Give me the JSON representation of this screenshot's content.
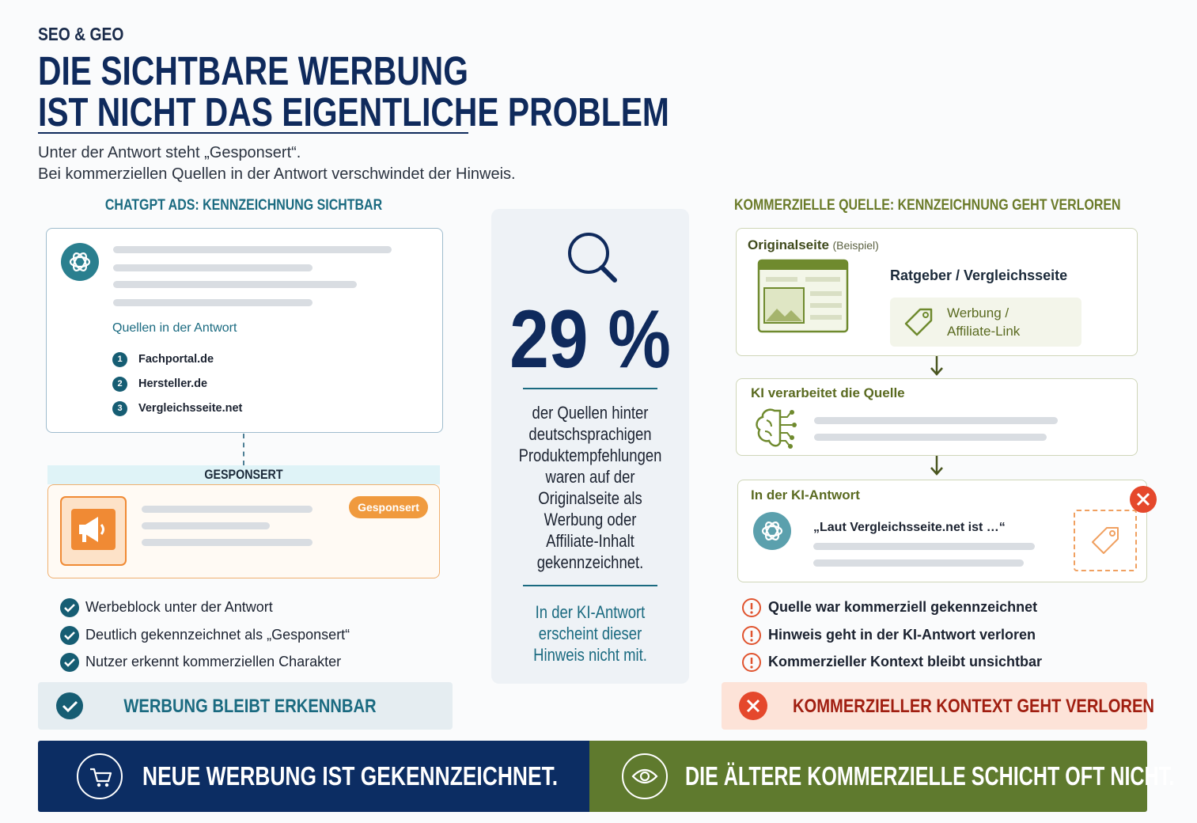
{
  "header": {
    "kicker": "SEO & GEO",
    "title_lines": [
      "DIE SICHTBARE WERBUNG",
      "IST NICHT DAS EIGENTLICHE PROBLEM"
    ],
    "subtitle_lines": [
      "Unter der Antwort steht „Gesponsert“.",
      "Bei kommerziellen Quellen in der Antwort verschwindet der Hinweis."
    ]
  },
  "left": {
    "heading": "CHATGPT ADS: KENNZEICHNUNG SICHTBAR",
    "sources_label": "Quellen in der Antwort",
    "sources": [
      {
        "number": "1",
        "name": "Fachportal.de"
      },
      {
        "number": "2",
        "name": "Hersteller.de"
      },
      {
        "number": "3",
        "name": "Vergleichsseite.net"
      }
    ],
    "sponsored_label": "GESPONSERT",
    "badge": "Gesponsert",
    "checks": [
      "Werbeblock unter der Antwort",
      "Deutlich gekennzeichnet als „Gesponsert“",
      "Nutzer erkennt kommerziellen Charakter"
    ],
    "result": "WERBUNG BLEIBT ERKENNBAR"
  },
  "center": {
    "stat": "29 %",
    "description_lines": [
      "der Quellen hinter",
      "deutschsprachigen",
      "Produktempfehlungen",
      "waren auf der",
      "Originalseite als",
      "Werbung oder",
      "Affiliate-Inhalt",
      "gekennzeichnet."
    ],
    "note_lines": [
      "In der KI-Antwort",
      "erscheint dieser",
      "Hinweis nicht mit."
    ]
  },
  "right": {
    "heading": "KOMMERZIELLE QUELLE: KENNZEICHNUNG GEHT VERLOREN",
    "original_title": "Originalseite",
    "original_hint": "(Beispiel)",
    "original_page": "Ratgeber / Vergleichsseite",
    "tag_lines": [
      "Werbung /",
      "Affiliate-Link"
    ],
    "processing_title": "KI verarbeitet die Quelle",
    "answer_title": "In der KI-Antwort",
    "answer_quote": "„Laut Vergleichsseite.net ist …“",
    "warnings": [
      "Quelle war kommerziell gekennzeichnet",
      "Hinweis geht in der KI-Antwort verloren",
      "Kommerzieller Kontext bleibt unsichtbar"
    ],
    "result": "KOMMERZIELLER KONTEXT GEHT VERLOREN"
  },
  "footer": {
    "left": "NEUE WERBUNG IST GEKENNZEICHNET.",
    "right": "DIE ÄLTERE KOMMERZIELLE SCHICHT OFT NICHT."
  }
}
